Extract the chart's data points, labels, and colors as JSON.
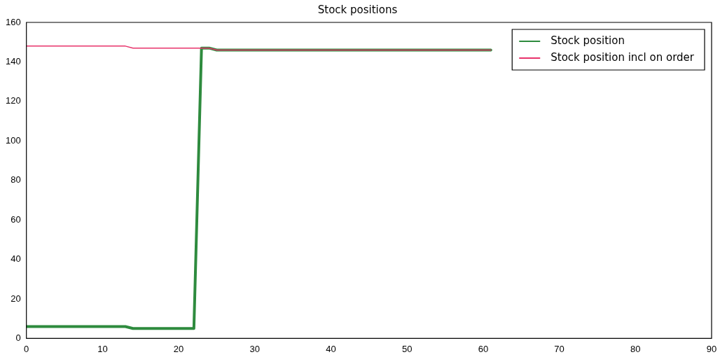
{
  "chart_data": {
    "type": "line",
    "title": "Stock positions",
    "xlim": [
      0,
      90
    ],
    "xticks": [
      0,
      10,
      20,
      30,
      40,
      50,
      60,
      70,
      80,
      90
    ],
    "ylim": [
      0,
      160
    ],
    "yticks": [
      0,
      20,
      40,
      60,
      80,
      100,
      120,
      140,
      160
    ],
    "grid": false,
    "legend": "top right",
    "marker": "none",
    "line_style": "solid",
    "series": [
      {
        "name": "Stock position",
        "color": "#2e8b3e",
        "x": [
          0,
          13,
          14,
          22,
          23,
          24,
          25,
          61
        ],
        "values": [
          6,
          6,
          5,
          5,
          147,
          147,
          146,
          146
        ]
      },
      {
        "name": "Stock position incl on order",
        "color": "#e8336b",
        "x": [
          0,
          13,
          14,
          22,
          23,
          24,
          25,
          61
        ],
        "values": [
          148,
          148,
          147,
          147,
          147,
          147,
          146,
          146
        ]
      }
    ]
  }
}
